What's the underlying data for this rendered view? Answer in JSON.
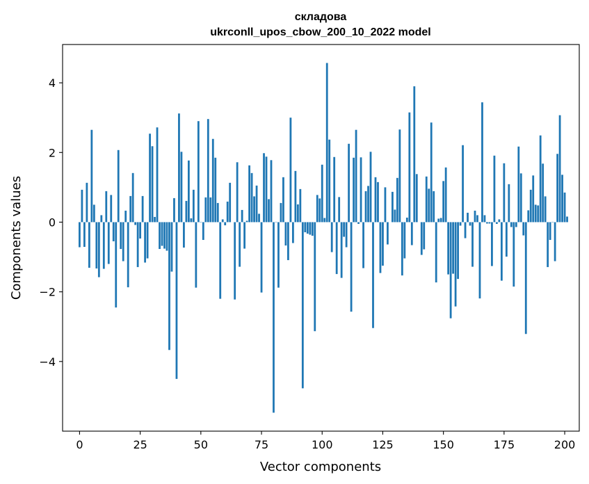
{
  "chart_data": {
    "type": "bar",
    "title": "складова",
    "subtitle": "ukrconll_upos_cbow_200_10_2022 model",
    "xlabel": "Vector components",
    "ylabel": "Components values",
    "xlim": [
      -7,
      206
    ],
    "ylim": [
      -6.0,
      5.1
    ],
    "xticks": [
      0,
      25,
      50,
      75,
      100,
      125,
      150,
      175,
      200
    ],
    "yticks": [
      -4,
      -2,
      0,
      2,
      4
    ],
    "ytick_labels": [
      "−4",
      "−2",
      "0",
      "2",
      "4"
    ],
    "grid": false,
    "bar_color": "#1f77b4",
    "values": [
      -0.72,
      0.93,
      -0.71,
      1.13,
      -1.31,
      2.65,
      0.5,
      -1.33,
      -1.58,
      0.2,
      -1.34,
      0.89,
      -1.2,
      0.78,
      -0.55,
      -2.45,
      2.07,
      -0.77,
      -1.12,
      0.33,
      -1.87,
      0.75,
      1.41,
      -0.08,
      -1.29,
      -0.47,
      0.75,
      -1.16,
      -1.04,
      2.54,
      2.18,
      0.15,
      2.72,
      -0.77,
      -0.68,
      -0.76,
      -0.82,
      -3.67,
      -1.42,
      0.69,
      -4.5,
      3.12,
      2.02,
      -0.73,
      0.61,
      1.77,
      0.11,
      0.93,
      -1.88,
      2.9,
      0.01,
      -0.51,
      0.71,
      2.96,
      0.71,
      2.39,
      1.85,
      0.55,
      -2.2,
      0.08,
      -0.09,
      0.59,
      1.13,
      0.0,
      -2.22,
      1.72,
      -1.28,
      0.35,
      -0.76,
      0.04,
      1.63,
      1.41,
      0.74,
      1.05,
      0.24,
      -2.02,
      1.98,
      1.88,
      0.66,
      1.78,
      -5.47,
      0.01,
      -1.88,
      0.55,
      1.29,
      -0.67,
      -1.09,
      3.0,
      -0.6,
      1.47,
      0.51,
      0.95,
      -4.77,
      -0.29,
      -0.33,
      -0.36,
      -0.39,
      -3.13,
      0.78,
      0.68,
      1.65,
      0.12,
      4.57,
      2.37,
      -0.86,
      1.87,
      -1.49,
      0.72,
      -1.6,
      -0.42,
      -0.72,
      2.25,
      -2.57,
      1.85,
      2.65,
      -0.05,
      1.86,
      -1.32,
      0.89,
      1.04,
      2.02,
      -3.04,
      1.29,
      1.15,
      -1.46,
      -1.25,
      1.0,
      -0.64,
      0.0,
      0.87,
      0.36,
      1.27,
      2.66,
      -1.53,
      -1.04,
      0.13,
      3.15,
      -0.66,
      3.9,
      1.38,
      0.0,
      -0.94,
      -0.78,
      1.31,
      0.96,
      2.86,
      0.89,
      -1.73,
      0.1,
      0.12,
      1.18,
      1.57,
      -1.5,
      -2.76,
      -1.48,
      -2.42,
      -1.63,
      -0.1,
      2.21,
      -0.46,
      0.27,
      -0.1,
      -1.28,
      0.33,
      0.2,
      -2.19,
      3.44,
      0.2,
      -0.04,
      -0.04,
      -1.26,
      1.91,
      -0.05,
      0.08,
      -1.68,
      1.69,
      -0.99,
      1.09,
      -0.14,
      -1.85,
      -0.14,
      2.17,
      1.4,
      -0.38,
      -3.21,
      0.34,
      0.93,
      1.34,
      0.5,
      0.48,
      2.49,
      1.68,
      0.74,
      -1.29,
      -0.51,
      0.01,
      -1.12,
      1.96,
      3.07,
      1.36,
      0.85,
      0.16
    ]
  }
}
